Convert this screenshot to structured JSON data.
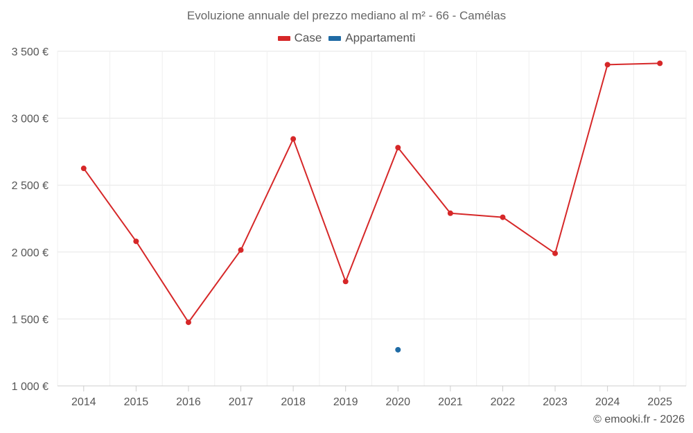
{
  "chart_data": {
    "type": "line",
    "title": "Evoluzione annuale del prezzo mediano al m² - 66 - Camélas",
    "categories": [
      "2014",
      "2015",
      "2016",
      "2017",
      "2018",
      "2019",
      "2020",
      "2021",
      "2022",
      "2023",
      "2024",
      "2025"
    ],
    "ylim": [
      1000,
      3500
    ],
    "yticks": [
      1000,
      1500,
      2000,
      2500,
      3000,
      3500
    ],
    "ytick_labels": [
      "1 000 €",
      "1 500 €",
      "2 000 €",
      "2 500 €",
      "3 000 €",
      "3 500 €"
    ],
    "xlabel": "",
    "ylabel": "",
    "grid": true,
    "legend_position": "top-center",
    "series": [
      {
        "name": "Case",
        "color": "#d62728",
        "values": [
          2625,
          2080,
          1475,
          2015,
          2845,
          1780,
          2780,
          2290,
          2260,
          1990,
          3400,
          3410
        ]
      },
      {
        "name": "Appartamenti",
        "color": "#1f6ba5",
        "values": [
          null,
          null,
          null,
          null,
          null,
          null,
          1270,
          null,
          null,
          null,
          null,
          null
        ]
      }
    ]
  },
  "credit": "© emooki.fr - 2026"
}
